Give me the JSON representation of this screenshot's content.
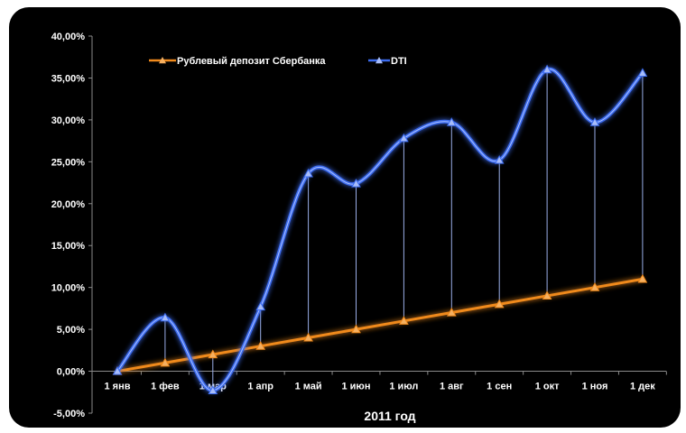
{
  "chart_data": {
    "type": "line",
    "xlabel": "2011 год",
    "categories": [
      "1 янв",
      "1 фев",
      "1 мар",
      "1 апр",
      "1 май",
      "1 июн",
      "1 июл",
      "1 авг",
      "1 сен",
      "1 окт",
      "1 ноя",
      "1 дек"
    ],
    "y_ticks": [
      "-5,00%",
      "0,00%",
      "5,00%",
      "10,00%",
      "15,00%",
      "20,00%",
      "25,00%",
      "30,00%",
      "35,00%",
      "40,00%"
    ],
    "ylim": [
      -5,
      40
    ],
    "y_unit": "%",
    "grid": false,
    "legend_position": "top",
    "drop_lines": true,
    "series": [
      {
        "name": "Рублевый депозит Сбербанка",
        "color": "#f08a1c",
        "smooth": false,
        "values": [
          0,
          1,
          2,
          3,
          4,
          5,
          6,
          7,
          8,
          9,
          10,
          11
        ]
      },
      {
        "name": "DTI",
        "color": "#2f63e8",
        "smooth": true,
        "values": [
          0,
          6.4,
          -2.3,
          7.7,
          23.6,
          22.4,
          27.8,
          29.7,
          25.2,
          36.0,
          29.7,
          35.6
        ]
      }
    ]
  }
}
